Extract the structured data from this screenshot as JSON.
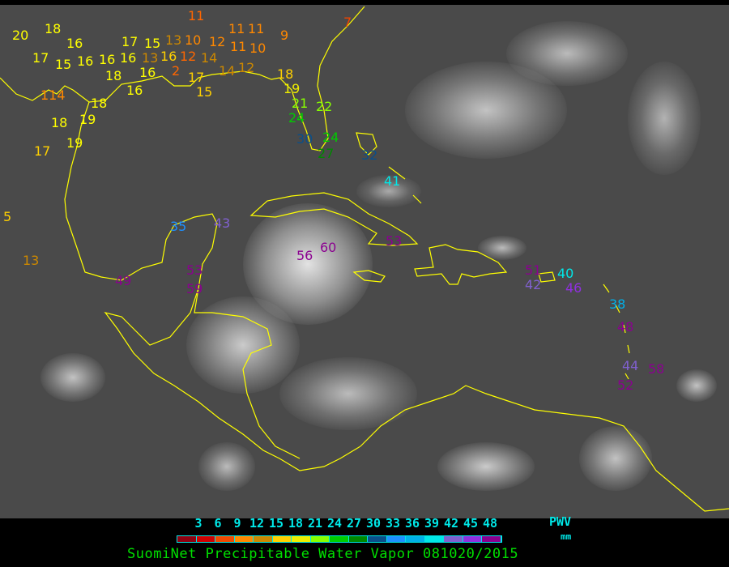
{
  "map": {
    "background": "infrared satellite imagery, Gulf of Mexico and Caribbean",
    "coastline_color": "#ffff00",
    "stations": [
      {
        "value": "20",
        "color": "#ffff00"
      },
      {
        "value": "18",
        "color": "#ffff00"
      },
      {
        "value": "17",
        "color": "#ffff00"
      },
      {
        "value": "15",
        "color": "#ffff00"
      },
      {
        "value": "16",
        "color": "#ffff00"
      },
      {
        "value": "16",
        "color": "#ffff00"
      },
      {
        "value": "16",
        "color": "#ffff00"
      },
      {
        "value": "16",
        "color": "#ffff00"
      },
      {
        "value": "17",
        "color": "#ffff00"
      },
      {
        "value": "16",
        "color": "#ffff00"
      },
      {
        "value": "18",
        "color": "#ffff00"
      },
      {
        "value": "16",
        "color": "#ffff00"
      },
      {
        "value": "15",
        "color": "#ffff00"
      },
      {
        "value": "13",
        "color": "#cc8800"
      },
      {
        "value": "16",
        "color": "#ffd000"
      },
      {
        "value": "12",
        "color": "#ff6600"
      },
      {
        "value": "13",
        "color": "#cc8800"
      },
      {
        "value": "2",
        "color": "#ff6600"
      },
      {
        "value": "10",
        "color": "#ff8800"
      },
      {
        "value": "11",
        "color": "#ff6600"
      },
      {
        "value": "12",
        "color": "#ff8800"
      },
      {
        "value": "11",
        "color": "#ff8800"
      },
      {
        "value": "11",
        "color": "#ff8800"
      },
      {
        "value": "11",
        "color": "#ff8800"
      },
      {
        "value": "10",
        "color": "#ff8800"
      },
      {
        "value": "14",
        "color": "#cc8800"
      },
      {
        "value": "14",
        "color": "#cc8800"
      },
      {
        "value": "12",
        "color": "#cc8800"
      },
      {
        "value": "17",
        "color": "#ffd000"
      },
      {
        "value": "15",
        "color": "#ffd000"
      },
      {
        "value": "9",
        "color": "#ff8800"
      },
      {
        "value": "7",
        "color": "#ee4400"
      },
      {
        "value": "18",
        "color": "#ffd000"
      },
      {
        "value": "19",
        "color": "#eeee00"
      },
      {
        "value": "21",
        "color": "#88ff00"
      },
      {
        "value": "22",
        "color": "#88ff00"
      },
      {
        "value": "24",
        "color": "#00cc00"
      },
      {
        "value": "24",
        "color": "#00cc00"
      },
      {
        "value": "30",
        "color": "#0a4f8a"
      },
      {
        "value": "27",
        "color": "#008800"
      },
      {
        "value": "114",
        "color": "#ff8800"
      },
      {
        "value": "18",
        "color": "#ffff00"
      },
      {
        "value": "18",
        "color": "#ffff00"
      },
      {
        "value": "19",
        "color": "#ffff00"
      },
      {
        "value": "19",
        "color": "#ffff00"
      },
      {
        "value": "17",
        "color": "#ffd000"
      },
      {
        "value": "5",
        "color": "#ffd000"
      },
      {
        "value": "13",
        "color": "#cc8800"
      },
      {
        "value": "35",
        "color": "#1e90ff"
      },
      {
        "value": "43",
        "color": "#8060d0"
      },
      {
        "value": "53",
        "color": "#8b0090"
      },
      {
        "value": "59",
        "color": "#8b0090"
      },
      {
        "value": "49",
        "color": "#8b0090"
      },
      {
        "value": "56",
        "color": "#8b0090"
      },
      {
        "value": "60",
        "color": "#8b0090"
      },
      {
        "value": "53",
        "color": "#8b0090"
      },
      {
        "value": "32",
        "color": "#0a4f8a"
      },
      {
        "value": "41",
        "color": "#00e8e8"
      },
      {
        "value": "51",
        "color": "#8b0090"
      },
      {
        "value": "42",
        "color": "#8060d0"
      },
      {
        "value": "40",
        "color": "#00e8e8"
      },
      {
        "value": "46",
        "color": "#9030e0"
      },
      {
        "value": "38",
        "color": "#00b0e8"
      },
      {
        "value": "48",
        "color": "#8b0090"
      },
      {
        "value": "44",
        "color": "#8060d0"
      },
      {
        "value": "58",
        "color": "#8b0090"
      },
      {
        "value": "52",
        "color": "#8b0090"
      }
    ]
  },
  "legend": {
    "ticks": [
      "3",
      "6",
      "9",
      "12",
      "15",
      "18",
      "21",
      "24",
      "27",
      "30",
      "33",
      "36",
      "39",
      "42",
      "45",
      "48"
    ],
    "colors": [
      "#900010",
      "#d00000",
      "#f04800",
      "#ff8800",
      "#cc8800",
      "#ffd000",
      "#eeee00",
      "#88ff00",
      "#00cc00",
      "#008800",
      "#0a4f8a",
      "#1e90ff",
      "#00b0e8",
      "#00e8e8",
      "#8060d0",
      "#9030e0",
      "#8b0090"
    ],
    "unit_label": "PWV",
    "unit": "mm",
    "title": "SuomiNet Precipitable Water Vapor 081020/2015"
  }
}
